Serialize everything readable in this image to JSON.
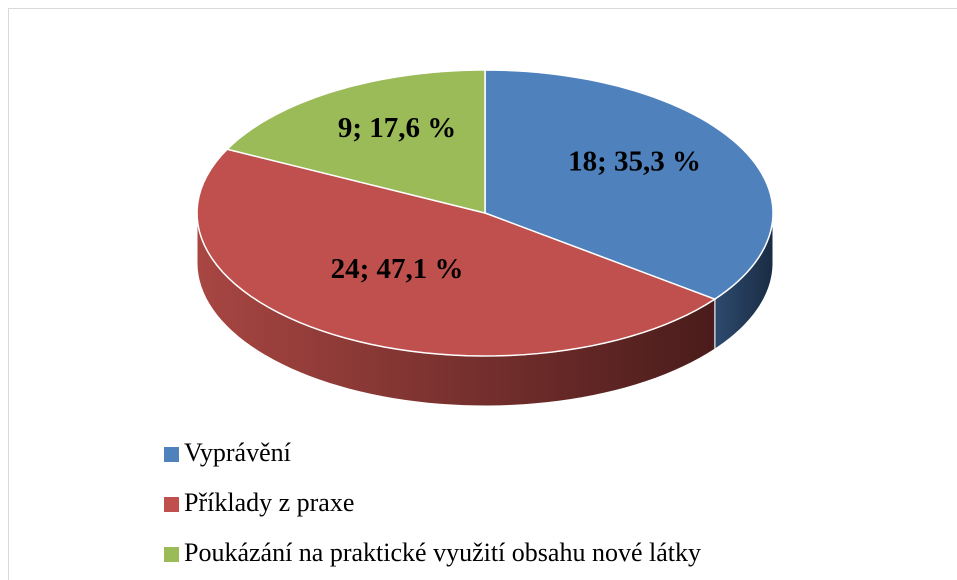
{
  "chart_data": {
    "type": "pie",
    "categories": [
      "Vyprávění",
      "Příklady z praxe",
      "Poukázání na praktické využití obsahu nové látky"
    ],
    "values": [
      18,
      24,
      9
    ],
    "value_labels": [
      "18; 35,3 %",
      "24; 47,1 %",
      "9; 17,6 %"
    ],
    "colors": [
      "#4f81bd",
      "#c0504d",
      "#9bbb59"
    ],
    "legend": "bottom"
  }
}
